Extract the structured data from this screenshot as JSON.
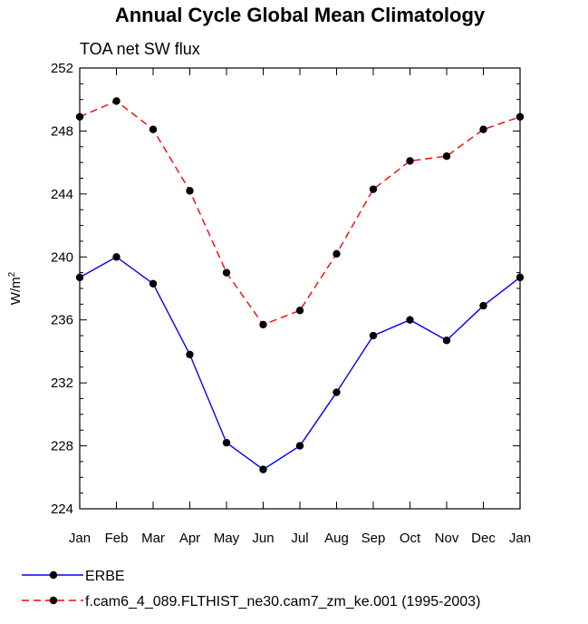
{
  "chart_data": {
    "type": "line",
    "title": "Annual Cycle Global Mean Climatology",
    "subtitle": "TOA net SW flux",
    "ylabel": "W/m",
    "ylabel_superscript": "2",
    "xlabel": "",
    "ylim": [
      224,
      252
    ],
    "yticks": [
      224,
      228,
      232,
      236,
      240,
      244,
      248,
      252
    ],
    "ytick_labels": [
      "224",
      "228",
      "232",
      "236",
      "240",
      "244",
      "248",
      "252"
    ],
    "categories": [
      "Jan",
      "Feb",
      "Mar",
      "Apr",
      "May",
      "Jun",
      "Jul",
      "Aug",
      "Sep",
      "Oct",
      "Nov",
      "Dec",
      "Jan"
    ],
    "series": [
      {
        "name": "ERBE",
        "color": "#0000ff",
        "dash": "solid",
        "values": [
          238.7,
          240.0,
          238.3,
          233.8,
          228.2,
          226.5,
          228.0,
          231.4,
          235.0,
          236.0,
          234.7,
          236.9,
          238.7
        ]
      },
      {
        "name": "f.cam6_4_089.FLTHIST_ne30.cam7_zm_ke.001 (1995-2003)",
        "color": "#ff0000",
        "dash": "dashed",
        "values": [
          248.9,
          249.9,
          248.1,
          244.2,
          239.0,
          235.7,
          236.6,
          240.2,
          244.3,
          246.1,
          246.4,
          248.1,
          248.9
        ]
      }
    ]
  }
}
